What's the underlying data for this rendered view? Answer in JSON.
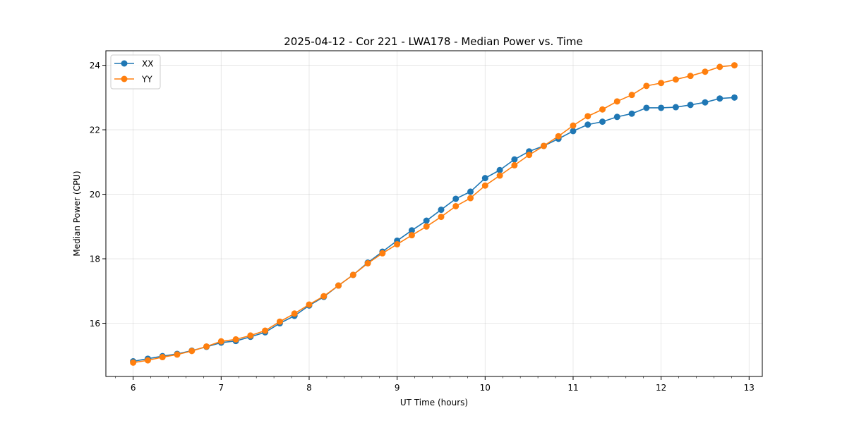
{
  "chart_data": {
    "type": "line",
    "title": "2025-04-12 - Cor 221 - LWA178 - Median Power vs. Time",
    "xlabel": "UT Time (hours)",
    "ylabel": "Median Power (CPU)",
    "xlim": [
      5.69,
      13.15
    ],
    "ylim": [
      14.35,
      24.45
    ],
    "xticks": [
      6,
      7,
      8,
      9,
      10,
      11,
      12,
      13
    ],
    "xtick_labels": [
      "6",
      "7",
      "8",
      "9",
      "10",
      "11",
      "12",
      "13"
    ],
    "yticks": [
      16,
      18,
      20,
      22,
      24
    ],
    "ytick_labels": [
      "16",
      "18",
      "20",
      "22",
      "24"
    ],
    "grid": true,
    "legend_position": "top-left",
    "x": [
      6.0,
      6.1667,
      6.3333,
      6.5,
      6.6667,
      6.8333,
      7.0,
      7.1667,
      7.3333,
      7.5,
      7.6667,
      7.8333,
      8.0,
      8.1667,
      8.3333,
      8.5,
      8.6667,
      8.8333,
      9.0,
      9.1667,
      9.3333,
      9.5,
      9.6667,
      9.8333,
      10.0,
      10.1667,
      10.3333,
      10.5,
      10.6667,
      10.8333,
      11.0,
      11.1667,
      11.3333,
      11.5,
      11.6667,
      11.8333,
      12.0,
      12.1667,
      12.3333,
      12.5,
      12.6667,
      12.8333
    ],
    "series": [
      {
        "name": "XX",
        "color": "#1f77b4",
        "values": [
          14.82,
          14.9,
          14.98,
          15.05,
          15.15,
          15.27,
          15.4,
          15.45,
          15.58,
          15.72,
          16.0,
          16.23,
          16.55,
          16.82,
          17.17,
          17.5,
          17.88,
          18.22,
          18.56,
          18.88,
          19.18,
          19.52,
          19.86,
          20.08,
          20.5,
          20.75,
          21.08,
          21.33,
          21.5,
          21.72,
          21.96,
          22.16,
          22.25,
          22.4,
          22.5,
          22.68,
          22.68,
          22.7,
          22.77,
          22.85,
          22.97,
          23.0
        ]
      },
      {
        "name": "YY",
        "color": "#ff7f0e",
        "values": [
          14.78,
          14.85,
          14.95,
          15.03,
          15.14,
          15.28,
          15.44,
          15.5,
          15.62,
          15.77,
          16.05,
          16.3,
          16.58,
          16.84,
          17.17,
          17.5,
          17.86,
          18.17,
          18.45,
          18.73,
          19.0,
          19.3,
          19.63,
          19.88,
          20.27,
          20.58,
          20.9,
          21.22,
          21.5,
          21.8,
          22.13,
          22.42,
          22.63,
          22.88,
          23.08,
          23.36,
          23.45,
          23.56,
          23.67,
          23.8,
          23.95,
          24.0
        ]
      }
    ]
  }
}
